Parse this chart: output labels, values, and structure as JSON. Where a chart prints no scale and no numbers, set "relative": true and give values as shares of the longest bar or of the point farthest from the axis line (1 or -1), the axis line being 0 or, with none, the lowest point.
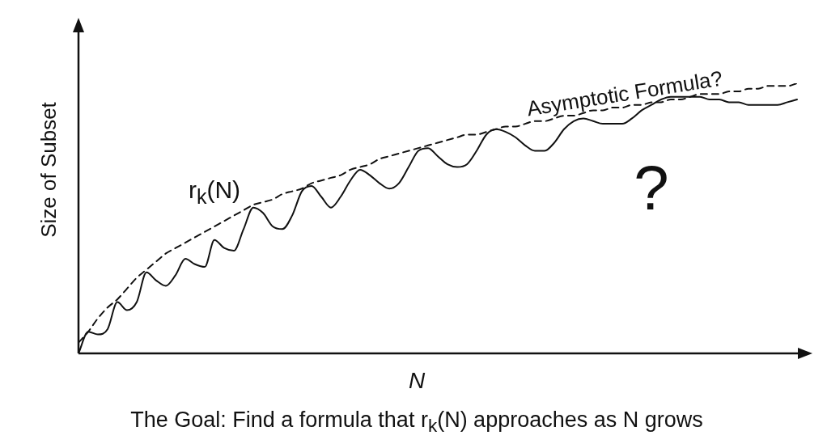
{
  "chart_data": {
    "type": "line",
    "relative": true,
    "ylabel": "Size of Subset",
    "xlabel": "N",
    "marker": "none",
    "legend": false,
    "categories": [
      null,
      null,
      null,
      null,
      null,
      null,
      null,
      null,
      null,
      null,
      null,
      null,
      null,
      null,
      null,
      null,
      null,
      null,
      null,
      null,
      null,
      null,
      null,
      null,
      null,
      null,
      null,
      null,
      null,
      null,
      null,
      null,
      null,
      null,
      null,
      null,
      null,
      null,
      null,
      null,
      null,
      null,
      null,
      null,
      null,
      null,
      null,
      null,
      null,
      null,
      null,
      null,
      null,
      null,
      null,
      null,
      null,
      null,
      null,
      null,
      null,
      null,
      null,
      null,
      null,
      null,
      null,
      null,
      null,
      null,
      null,
      null,
      null,
      null,
      null
    ],
    "series": [
      {
        "name": "r$_{k}$(N)",
        "color": "#111111",
        "line_style": "solid",
        "values": [
          0,
          0.08,
          0.07,
          0.09,
          0.19,
          0.16,
          0.19,
          0.3,
          0.27,
          0.25,
          0.29,
          0.35,
          0.33,
          0.32,
          0.42,
          0.39,
          0.38,
          0.46,
          0.54,
          0.52,
          0.47,
          0.46,
          0.51,
          0.6,
          0.62,
          0.58,
          0.54,
          0.58,
          0.64,
          0.68,
          0.66,
          0.63,
          0.61,
          0.63,
          0.69,
          0.75,
          0.76,
          0.73,
          0.7,
          0.69,
          0.7,
          0.75,
          0.81,
          0.83,
          0.82,
          0.8,
          0.77,
          0.75,
          0.75,
          0.78,
          0.83,
          0.86,
          0.87,
          0.86,
          0.85,
          0.85,
          0.85,
          0.87,
          0.9,
          0.92,
          0.94,
          0.95,
          0.95,
          0.95,
          0.95,
          0.94,
          0.94,
          0.93,
          0.93,
          0.92,
          0.92,
          0.92,
          0.92,
          0.93,
          0.94
        ]
      },
      {
        "name": "Asymptotic Formula?",
        "color": "#111111",
        "line_style": "dashed",
        "values": [
          0.04,
          0.08,
          0.13,
          0.17,
          0.2,
          0.24,
          0.28,
          0.31,
          0.34,
          0.37,
          0.39,
          0.41,
          0.43,
          0.45,
          0.47,
          0.49,
          0.51,
          0.53,
          0.55,
          0.56,
          0.57,
          0.59,
          0.6,
          0.61,
          0.63,
          0.64,
          0.65,
          0.66,
          0.68,
          0.69,
          0.7,
          0.72,
          0.73,
          0.74,
          0.75,
          0.76,
          0.77,
          0.78,
          0.79,
          0.8,
          0.81,
          0.81,
          0.82,
          0.83,
          0.84,
          0.84,
          0.85,
          0.86,
          0.86,
          0.87,
          0.88,
          0.88,
          0.89,
          0.9,
          0.9,
          0.91,
          0.91,
          0.92,
          0.92,
          0.93,
          0.93,
          0.94,
          0.94,
          0.95,
          0.96,
          0.96,
          0.96,
          0.97,
          0.97,
          0.98,
          0.98,
          0.99,
          0.99,
          0.99,
          1
        ]
      }
    ],
    "annotations": [
      "?",
      "The Goal: Find a formula that r$_{k}$(N) approaches as N grows"
    ]
  }
}
